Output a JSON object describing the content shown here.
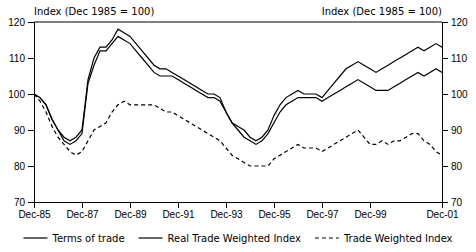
{
  "chart_data": {
    "type": "line",
    "ylabel": "Index (Dec 1985 = 100)",
    "y2label": "Index (Dec 1985 = 100)",
    "categories": [
      "Dec-85",
      null,
      null,
      null,
      null,
      null,
      null,
      null,
      "Dec-87",
      null,
      null,
      null,
      null,
      null,
      null,
      null,
      "Dec-89",
      null,
      null,
      null,
      null,
      null,
      null,
      null,
      "Dec-91",
      null,
      null,
      null,
      null,
      null,
      null,
      null,
      "Dec-93",
      null,
      null,
      null,
      null,
      null,
      null,
      null,
      "Dec-95",
      null,
      null,
      null,
      null,
      null,
      null,
      null,
      "Dec-97",
      null,
      null,
      null,
      null,
      null,
      null,
      null,
      "Dec-99",
      null,
      null,
      null,
      null,
      null,
      null,
      null,
      null,
      null,
      null,
      null,
      "Dec-01"
    ],
    "ylim": [
      70,
      120
    ],
    "yticks": [
      70,
      80,
      90,
      100,
      110,
      120
    ],
    "y2lim": [
      70,
      120
    ],
    "y2ticks": [
      70,
      80,
      90,
      100,
      110,
      120
    ],
    "grid": false,
    "series": [
      {
        "name": "Terms of trade",
        "color": "#000000",
        "line_style": "solid",
        "values": [
          100,
          99,
          97,
          93,
          90,
          88,
          87,
          88,
          90,
          104,
          110,
          113,
          113,
          115,
          118,
          117,
          116,
          114,
          112,
          110,
          108,
          107,
          107,
          106,
          105,
          104,
          103,
          102,
          101,
          100,
          100,
          99,
          95,
          92,
          91,
          90,
          88,
          87,
          88,
          90,
          94,
          97,
          99,
          100,
          101,
          100,
          100,
          100,
          99,
          101,
          103,
          105,
          107,
          108,
          109,
          108,
          107,
          106,
          107,
          108,
          109,
          110,
          111,
          112,
          113,
          112,
          113,
          114,
          113
        ]
      },
      {
        "name": "Real Trade Weighted Index",
        "color": "#000000",
        "line_style": "solid",
        "values": [
          100,
          99,
          97,
          93,
          90,
          87,
          86,
          87,
          89,
          103,
          108,
          112,
          112,
          114,
          116,
          115,
          114,
          112,
          110,
          108,
          106,
          105,
          105,
          105,
          104,
          103,
          102,
          101,
          100,
          99,
          99,
          98,
          95,
          92,
          90,
          88,
          87,
          86,
          87,
          89,
          92,
          95,
          97,
          98,
          99,
          99,
          99,
          99,
          98,
          99,
          100,
          101,
          102,
          103,
          104,
          103,
          102,
          101,
          101,
          101,
          102,
          103,
          104,
          105,
          106,
          105,
          106,
          107,
          106
        ]
      },
      {
        "name": "Trade Weighted Index",
        "color": "#000000",
        "line_style": "dashed",
        "values": [
          100,
          98,
          95,
          91,
          88,
          86,
          84,
          83,
          84,
          87,
          90,
          91,
          92,
          95,
          97,
          98,
          97,
          97,
          97,
          97,
          97,
          96,
          95,
          95,
          94,
          93,
          92,
          91,
          90,
          89,
          88,
          87,
          85,
          83,
          82,
          81,
          80,
          80,
          80,
          80,
          82,
          83,
          84,
          85,
          86,
          85,
          85,
          85,
          84,
          85,
          86,
          87,
          88,
          89,
          90,
          88,
          86,
          86,
          87,
          86,
          87,
          87,
          88,
          89,
          89,
          87,
          86,
          84,
          83
        ]
      }
    ]
  }
}
